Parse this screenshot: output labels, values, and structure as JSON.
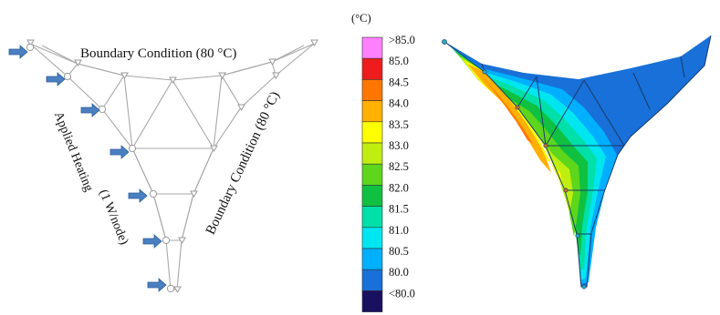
{
  "left_panel": {
    "top_label": "Boundary Condition (80 °C)",
    "right_label": "Boundary Condition (80 °C)",
    "left_label_line1": "Applied Heating",
    "left_label_line2": "(1 W/node)",
    "heated_node_count": 7
  },
  "legend": {
    "unit": "(°C)",
    "levels": [
      {
        "label": ">85.0",
        "color": "#ff80ff"
      },
      {
        "label": "85.0",
        "color": "#ee1c1c"
      },
      {
        "label": "84.5",
        "color": "#ff7700"
      },
      {
        "label": "84.0",
        "color": "#ffb000"
      },
      {
        "label": "83.5",
        "color": "#ffff00"
      },
      {
        "label": "83.0",
        "color": "#c0ee10"
      },
      {
        "label": "82.5",
        "color": "#5ed61c"
      },
      {
        "label": "82.0",
        "color": "#10c040"
      },
      {
        "label": "81.5",
        "color": "#00e0a8"
      },
      {
        "label": "81.0",
        "color": "#00e6f0"
      },
      {
        "label": "80.5",
        "color": "#00b0ff"
      },
      {
        "label": "80.0",
        "color": "#1870d8"
      },
      {
        "label": "<80.0",
        "color": "#1a1060"
      }
    ]
  },
  "colors": {
    "mesh_line": "#a8a8a8",
    "arrow_fill": "#4a7fc0",
    "arrow_stroke": "#2e5f9a",
    "contour_edge": "#1a3a6a"
  }
}
